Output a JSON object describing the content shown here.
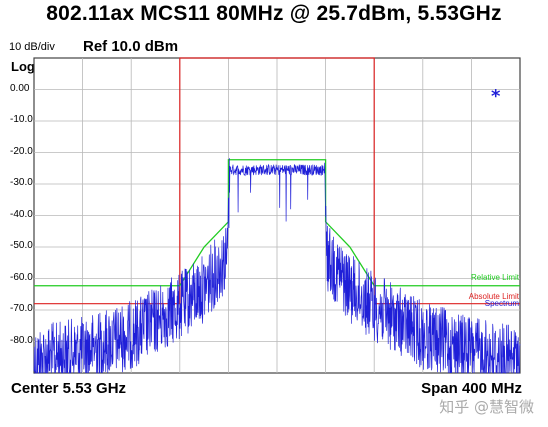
{
  "title": "802.11ax MCS11 80MHz @ 25.7dBm, 5.53GHz",
  "scale_label": "10 dB/div",
  "ref_label": "Ref 10.0 dBm",
  "log_label": "Log",
  "center_label": "Center 5.53 GHz",
  "span_label": "Span 400 MHz",
  "watermark": "知乎 @慧智微",
  "colors": {
    "trace": "#1f1fd8",
    "relative_limit": "#22cc22",
    "absolute_limit": "#dd2222",
    "spectrum": "#1f1fd8",
    "marker": "#1f1fd8"
  },
  "chart_data": {
    "type": "line",
    "title": "802.11ax MCS11 80MHz @ 25.7dBm, 5.53GHz",
    "xlabel": "",
    "ylabel": "",
    "x_unit": "MHz offset from 5.53 GHz",
    "xlim": [
      -200,
      200
    ],
    "ylim": [
      -90,
      10
    ],
    "ytick_labels": [
      "0.00",
      "-10.0",
      "-20.0",
      "-30.0",
      "-40.0",
      "-50.0",
      "-60.0",
      "-70.0",
      "-80.0"
    ],
    "yticks": [
      0,
      -10,
      -20,
      -30,
      -40,
      -50,
      -60,
      -70,
      -80
    ],
    "grid": true,
    "legend_position": "right",
    "series": [
      {
        "name": "Relative Limit",
        "x": [
          -200,
          -80,
          -60,
          -40,
          -40,
          0,
          40,
          40,
          60,
          80,
          200
        ],
        "y": [
          -62.3,
          -62.3,
          -50,
          -42,
          -22.3,
          -22.3,
          -22.3,
          -42,
          -50,
          -62.3,
          -62.3
        ]
      },
      {
        "name": "Absolute Limit",
        "x": [
          -200,
          -80,
          -80,
          80,
          80,
          200
        ],
        "y": [
          -68,
          -68,
          10,
          10,
          -68,
          -68
        ]
      },
      {
        "name": "Spectrum",
        "x": [
          -200,
          -160,
          -120,
          -80,
          -60,
          -41,
          -39,
          -20,
          0,
          20,
          39,
          41,
          60,
          80,
          120,
          160,
          200
        ],
        "y": [
          -83,
          -80,
          -75,
          -66,
          -60,
          -50,
          -25.5,
          -25.5,
          -25.5,
          -25.5,
          -25.5,
          -50,
          -60,
          -66,
          -75,
          -80,
          -83
        ]
      }
    ]
  }
}
